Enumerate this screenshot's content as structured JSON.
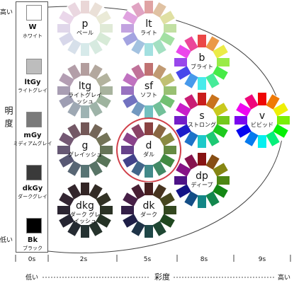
{
  "vertical_axis": {
    "label": "明度",
    "high": "高い",
    "low": "低い"
  },
  "horizontal_axis": {
    "label": "彩度",
    "low": "低い",
    "high": "高い"
  },
  "saturation_levels": [
    "0s",
    "2s",
    "5s",
    "8s",
    "9s"
  ],
  "gray_tones": [
    {
      "code": "W",
      "name": "ホワイト",
      "color": "#ffffff"
    },
    {
      "code": "ltGy",
      "name": "ライトグレイ",
      "color": "#bdbdbd"
    },
    {
      "code": "mGy",
      "name": "ミディアムグレイ",
      "color": "#7a7a7a"
    },
    {
      "code": "dkGy",
      "name": "ダークグレイ",
      "color": "#3a3a3a"
    },
    {
      "code": "Bk",
      "name": "ブラック",
      "color": "#000000"
    }
  ],
  "tones": [
    {
      "code": "p",
      "name": "ペール",
      "highlight": false,
      "saturation": 0.3,
      "lightness": 0.88
    },
    {
      "code": "lt",
      "name": "ライト",
      "highlight": false,
      "saturation": 0.5,
      "lightness": 0.76
    },
    {
      "code": "b",
      "name": "ブライト",
      "highlight": false,
      "saturation": 0.8,
      "lightness": 0.6
    },
    {
      "code": "ltg",
      "name": "ライトグレイッシュ",
      "highlight": false,
      "saturation": 0.12,
      "lightness": 0.66
    },
    {
      "code": "sf",
      "name": "ソフト",
      "highlight": false,
      "saturation": 0.38,
      "lightness": 0.6
    },
    {
      "code": "s",
      "name": "ストロング",
      "highlight": false,
      "saturation": 0.75,
      "lightness": 0.45
    },
    {
      "code": "v",
      "name": "ビビッド",
      "highlight": false,
      "saturation": 0.95,
      "lightness": 0.48
    },
    {
      "code": "g",
      "name": "グレイッシュ",
      "highlight": false,
      "saturation": 0.14,
      "lightness": 0.4
    },
    {
      "code": "d",
      "name": "ダル",
      "highlight": true,
      "saturation": 0.35,
      "lightness": 0.4
    },
    {
      "code": "dp",
      "name": "ディープ",
      "highlight": false,
      "saturation": 0.75,
      "lightness": 0.3
    },
    {
      "code": "dkg",
      "name": "ダーク グレイッシュ",
      "highlight": false,
      "saturation": 0.15,
      "lightness": 0.17
    },
    {
      "code": "dk",
      "name": "ダーク",
      "highlight": false,
      "saturation": 0.4,
      "lightness": 0.2
    }
  ],
  "colors": {
    "highlight_ring": "#d0404a",
    "frame": "#444444"
  }
}
